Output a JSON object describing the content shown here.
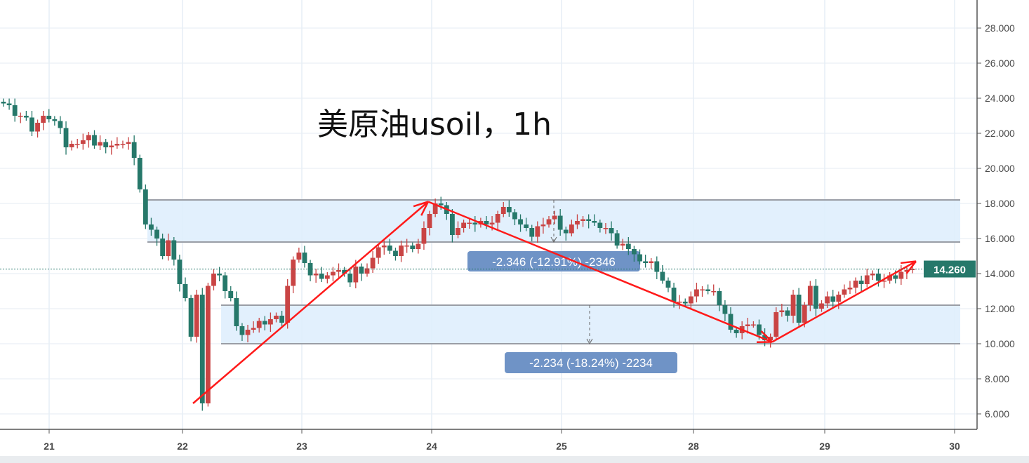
{
  "chart_data": {
    "type": "candlestick",
    "title": "美原油usoil，1h",
    "interval": "1h",
    "ylim": [
      5,
      30
    ],
    "y_ticks": [
      "6.000",
      "8.000",
      "10.000",
      "12.000",
      "14.000",
      "16.000",
      "18.000",
      "20.000",
      "22.000",
      "24.000",
      "26.000",
      "28.000"
    ],
    "x_ticks": [
      "21",
      "22",
      "23",
      "24",
      "25",
      "28",
      "29",
      "30"
    ],
    "grid": true,
    "up_color": "#c94444",
    "down_color": "#26786a",
    "last_price": 14.26,
    "last_price_label": "14.260",
    "closes": [
      23.7,
      23.6,
      23.0,
      23.0,
      22.9,
      22.1,
      22.6,
      23.0,
      22.8,
      22.7,
      22.3,
      21.2,
      21.4,
      21.4,
      21.6,
      21.9,
      21.3,
      21.5,
      21.2,
      21.3,
      21.4,
      21.4,
      21.5,
      20.6,
      18.8,
      16.8,
      16.5,
      16.0,
      15.0,
      15.9,
      14.8,
      13.4,
      12.6,
      10.4,
      12.8,
      6.6,
      13.3,
      14.0,
      13.9,
      13.0,
      12.6,
      11.0,
      10.5,
      10.8,
      10.9,
      11.3,
      11.1,
      11.4,
      11.6,
      11.2,
      13.3,
      14.8,
      15.2,
      14.6,
      13.9,
      14.0,
      13.7,
      13.9,
      14.1,
      14.2,
      14.0,
      13.5,
      14.4,
      14.0,
      14.3,
      14.9,
      15.5,
      15.6,
      15.3,
      15.0,
      15.6,
      15.6,
      15.4,
      15.7,
      16.6,
      17.4,
      18.0,
      17.9,
      17.4,
      16.2,
      16.6,
      16.9,
      16.9,
      16.8,
      17.0,
      16.8,
      16.9,
      17.4,
      17.8,
      17.5,
      17.1,
      16.8,
      16.6,
      16.1,
      16.7,
      16.8,
      17.1,
      17.3,
      16.5,
      16.3,
      16.8,
      17.0,
      17.1,
      17.0,
      16.9,
      16.6,
      16.6,
      16.3,
      15.6,
      15.7,
      15.4,
      15.1,
      14.7,
      14.6,
      14.7,
      14.1,
      13.6,
      13.2,
      12.4,
      12.4,
      12.3,
      12.7,
      13.1,
      13.1,
      13.0,
      13.0,
      12.2,
      11.7,
      10.8,
      10.6,
      11.0,
      11.1,
      11.1,
      10.5,
      10.2,
      10.4,
      11.8,
      11.9,
      11.6,
      12.8,
      11.2,
      12.2,
      13.3,
      12.0,
      12.3,
      12.7,
      12.4,
      12.8,
      13.1,
      13.2,
      13.6,
      13.4,
      13.9,
      14.0,
      13.6,
      13.6,
      13.9,
      13.7,
      14.1,
      14.2,
      14.26
    ],
    "first_open": 23.8,
    "zones": [
      {
        "low": 15.8,
        "high": 18.2,
        "measure_label": "-2.346 (-12.91%) -2346"
      },
      {
        "low": 10.0,
        "high": 12.2,
        "measure_label": "-2.234 (-18.24%) -2234"
      }
    ],
    "trend_lines": [
      {
        "from": {
          "date": "22",
          "price": 6.6
        },
        "to": {
          "date": "24",
          "price": 18.1
        }
      },
      {
        "from": {
          "date": "24",
          "price": 18.1
        },
        "to": {
          "date": "28",
          "price": 10.1
        }
      },
      {
        "from": {
          "date": "28",
          "price": 10.1
        },
        "to": {
          "date": "29",
          "price": 14.7
        }
      }
    ],
    "zone_color": "#dfeefd",
    "label_color": "#6f93c6",
    "trend_color": "#ff1a1a"
  }
}
